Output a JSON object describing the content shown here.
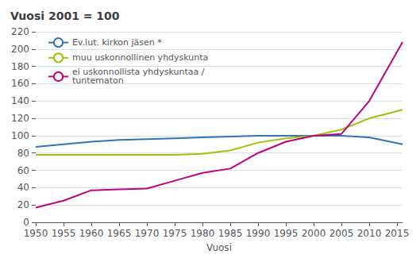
{
  "chart_data": {
    "type": "line",
    "title": "Vuosi 2001 = 100",
    "xlabel": "Vuosi",
    "x": [
      1950,
      1955,
      1960,
      1965,
      1970,
      1975,
      1980,
      1985,
      1990,
      1995,
      2000,
      2005,
      2010,
      2016
    ],
    "series": [
      {
        "name": "Ev.lut. kirkon jäsen *",
        "color": "#2e75b6",
        "values": [
          87,
          90,
          93,
          95,
          96,
          97,
          98,
          99,
          100,
          100,
          100,
          100,
          98,
          90
        ]
      },
      {
        "name": "muu uskonnollinen yhdyskunta",
        "color": "#9dc209",
        "values": [
          78,
          78,
          78,
          78,
          78,
          78,
          79,
          83,
          92,
          97,
          100,
          107,
          120,
          130
        ]
      },
      {
        "name": "ei uskonnollista yhdyskuntaa /\ntuntematon",
        "color": "#c00080",
        "values": [
          17,
          25,
          37,
          38,
          39,
          48,
          57,
          62,
          80,
          93,
          100,
          102,
          140,
          208
        ]
      }
    ],
    "xlim": [
      1950,
      2016
    ],
    "ylim": [
      0,
      220
    ],
    "xticks": [
      1950,
      1955,
      1960,
      1965,
      1970,
      1975,
      1980,
      1985,
      1990,
      1995,
      2000,
      2005,
      2010,
      2015
    ],
    "yticks": [
      0,
      20,
      40,
      60,
      80,
      100,
      120,
      140,
      160,
      180,
      200,
      220
    ],
    "grid": true,
    "legend": "upper left"
  }
}
